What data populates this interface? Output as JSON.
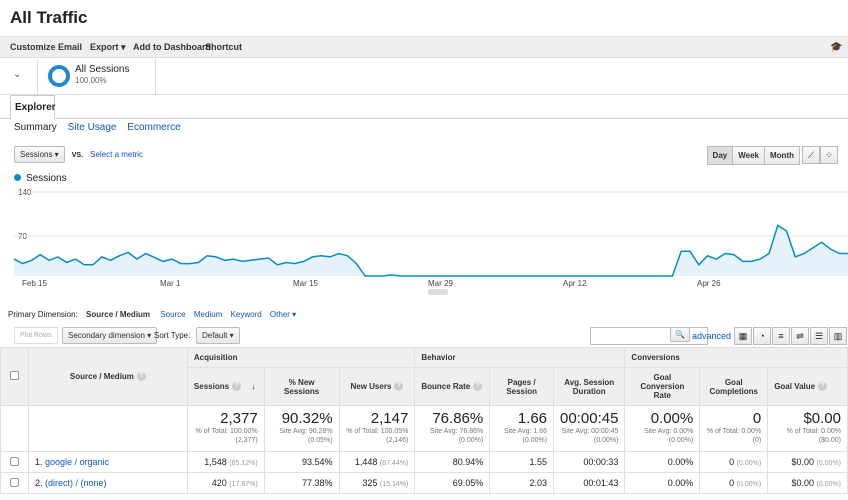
{
  "page": {
    "title": "All Traffic"
  },
  "toolbar": {
    "customize": "Customize",
    "email": "Email",
    "export": "Export ▾",
    "add_to_dashboard": "Add to Dashboard",
    "shortcut": "Shortcut"
  },
  "segment": {
    "name": "All Sessions",
    "percent": "100.00%"
  },
  "tabs": {
    "explorer": "Explorer"
  },
  "subtabs": {
    "summary": "Summary",
    "site_usage": "Site Usage",
    "ecommerce": "Ecommerce"
  },
  "metric": {
    "selected": "Sessions ▾",
    "vs": "VS.",
    "select_metric": "Select a metric"
  },
  "interval": {
    "day": "Day",
    "week": "Week",
    "month": "Month"
  },
  "chart_data": {
    "type": "area",
    "series": [
      {
        "name": "Sessions",
        "values": [
          30,
          22,
          28,
          38,
          28,
          34,
          24,
          30,
          20,
          20,
          34,
          28,
          36,
          42,
          30,
          40,
          33,
          26,
          30,
          22,
          22,
          24,
          36,
          34,
          28,
          30,
          26,
          28,
          30,
          32,
          20,
          24,
          22,
          26,
          34,
          36,
          34,
          40,
          36,
          22,
          0,
          0,
          0,
          2,
          0,
          0,
          0,
          0,
          0,
          0,
          0,
          0,
          0,
          0,
          0,
          0,
          0,
          0,
          0,
          0,
          0,
          0,
          0,
          0,
          0,
          0,
          0,
          0,
          0,
          0,
          0,
          0,
          0,
          0,
          0,
          0,
          44,
          44,
          20,
          36,
          30,
          40,
          38,
          26,
          26,
          30,
          40,
          90,
          80,
          34,
          40,
          50,
          60,
          48,
          40,
          40
        ]
      }
    ],
    "y_ticks": [
      "140",
      "70"
    ],
    "x_ticks": [
      "Feb 15",
      "Mar 1",
      "Mar 15",
      "Mar 29",
      "Apr 12",
      "Apr 26"
    ],
    "ylim": [
      0,
      160
    ],
    "color": "#058dc7"
  },
  "dimension": {
    "label": "Primary Dimension:",
    "selected": "Source / Medium",
    "options": [
      "Source",
      "Medium",
      "Keyword",
      "Other ▾"
    ]
  },
  "controls": {
    "plot_rows": "Plot Rows",
    "secondary_dimension": "Secondary dimension ▾",
    "sort_type_label": "Sort Type:",
    "sort_type": "Default ▾",
    "advanced": "advanced"
  },
  "table": {
    "groups": {
      "acquisition": "Acquisition",
      "behavior": "Behavior",
      "conversions": "Conversions"
    },
    "columns": {
      "source_medium": "Source / Medium",
      "sessions": "Sessions",
      "new_sessions": "% New Sessions",
      "new_users": "New Users",
      "bounce_rate": "Bounce Rate",
      "pages_session": "Pages / Session",
      "avg_duration": "Avg. Session Duration",
      "goal_conv_rate": "Goal Conversion Rate",
      "goal_completions": "Goal Completions",
      "goal_value": "Goal Value"
    },
    "totals": {
      "sessions": {
        "v": "2,377",
        "s": "% of Total: 100.00% (2,377)"
      },
      "new_sessions": {
        "v": "90.32%",
        "s": "Site Avg: 90.28% (0.05%)"
      },
      "new_users": {
        "v": "2,147",
        "s": "% of Total: 100.05% (2,146)"
      },
      "bounce_rate": {
        "v": "76.86%",
        "s": "Site Avg: 76.86% (0.00%)"
      },
      "pages_session": {
        "v": "1.66",
        "s": "Site Avg: 1.66 (0.00%)"
      },
      "avg_duration": {
        "v": "00:00:45",
        "s": "Site Avg: 00:00:45 (0.00%)"
      },
      "goal_conv_rate": {
        "v": "0.00%",
        "s": "Site Avg: 0.00% (0.00%)"
      },
      "goal_completions": {
        "v": "0",
        "s": "% of Total: 0.00% (0)"
      },
      "goal_value": {
        "v": "$0.00",
        "s": "% of Total: 0.00% ($0.00)"
      }
    },
    "rows": [
      {
        "num": "1.",
        "source": "google / organic",
        "sessions": "1,548",
        "sessions_pct": "(65.12%)",
        "new_sessions": "93.54%",
        "new_users": "1,448",
        "new_users_pct": "(67.44%)",
        "bounce_rate": "80.94%",
        "pages_session": "1.55",
        "avg_duration": "00:00:33",
        "goal_conv_rate": "0.00%",
        "goal_completions": "0",
        "goal_completions_pct": "(0.00%)",
        "goal_value": "$0.00",
        "goal_value_pct": "(0.00%)"
      },
      {
        "num": "2.",
        "source": "(direct) / (none)",
        "sessions": "420",
        "sessions_pct": "(17.67%)",
        "new_sessions": "77.38%",
        "new_users": "325",
        "new_users_pct": "(15.14%)",
        "bounce_rate": "69.05%",
        "pages_session": "2.03",
        "avg_duration": "00:01:43",
        "goal_conv_rate": "0.00%",
        "goal_completions": "0",
        "goal_completions_pct": "(0.00%)",
        "goal_value": "$0.00",
        "goal_value_pct": "(0.00%)"
      }
    ]
  }
}
